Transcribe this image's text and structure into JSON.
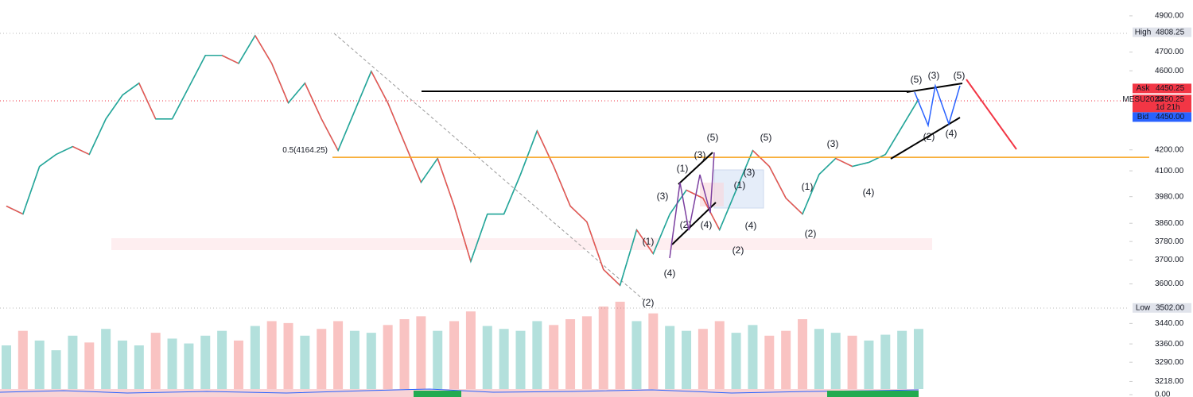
{
  "chart_data": {
    "type": "line",
    "log_scale": true,
    "grid": false,
    "color": "#26a69a",
    "up_color": "#26a69a",
    "down_color": "#ef5350",
    "categories": [
      null,
      null,
      null,
      null,
      null,
      null,
      null,
      null,
      null,
      null,
      null,
      null,
      null,
      null,
      null,
      null,
      null,
      null,
      null,
      null,
      null,
      null,
      null,
      null,
      null,
      null,
      null,
      null,
      null,
      null,
      null,
      null,
      null,
      null,
      null,
      null,
      null,
      null,
      null,
      null,
      null,
      null,
      null,
      null,
      null,
      null,
      null,
      null,
      null,
      null,
      null,
      null,
      null,
      null,
      null,
      null
    ],
    "values": [
      3937,
      3901,
      4121,
      4178,
      4216,
      4178,
      4352,
      4473,
      4535,
      4352,
      4352,
      4514,
      4682,
      4682,
      4639,
      4790,
      4639,
      4433,
      4535,
      4352,
      4197,
      4392,
      4597,
      4433,
      4235,
      4046,
      4159,
      3937,
      3694,
      3901,
      3901,
      4083,
      4293,
      4121,
      3937,
      3866,
      3660,
      3594,
      3831,
      3727,
      3901,
      4010,
      3973,
      3831,
      4010,
      4197,
      4121,
      3973,
      3901,
      4083,
      4159,
      4121,
      4140,
      4178,
      4313,
      4452
    ],
    "volume": [
      45,
      60,
      50,
      40,
      55,
      48,
      62,
      50,
      45,
      58,
      52,
      47,
      55,
      60,
      50,
      65,
      70,
      68,
      55,
      62,
      70,
      60,
      58,
      66,
      72,
      75,
      60,
      70,
      80,
      65,
      62,
      60,
      70,
      66,
      72,
      75,
      85,
      90,
      70,
      78,
      65,
      60,
      62,
      70,
      58,
      66,
      55,
      60,
      72,
      62,
      58,
      55,
      50,
      56,
      60,
      62
    ],
    "ylim": [
      3190,
      4990
    ],
    "yticks": [
      {
        "value": 4900,
        "label": "4900.00"
      },
      {
        "value": 4700,
        "label": "4700.00"
      },
      {
        "value": 4600,
        "label": "4600.00"
      },
      {
        "value": 4200,
        "label": "4200.00"
      },
      {
        "value": 4100,
        "label": "4100.00"
      },
      {
        "value": 3980,
        "label": "3980.00"
      },
      {
        "value": 3860,
        "label": "3860.00"
      },
      {
        "value": 3780,
        "label": "3780.00"
      },
      {
        "value": 3700,
        "label": "3700.00"
      },
      {
        "value": 3600,
        "label": "3600.00"
      },
      {
        "value": 3440,
        "label": "3440.00"
      },
      {
        "value": 3360,
        "label": "3360.00"
      },
      {
        "value": 3290,
        "label": "3290.00"
      },
      {
        "value": 3218,
        "label": "3218.00"
      }
    ],
    "indicator_ticks": [
      {
        "value": 0,
        "label": "0.00"
      }
    ],
    "price_labels": [
      {
        "name": "High",
        "value": 4808.25,
        "label": "4808.25",
        "color": "#e0e3eb"
      },
      {
        "name": "Low",
        "value": 3502,
        "label": "3502.00",
        "color": "#e0e3eb"
      },
      {
        "name": "Ask",
        "value": 4450.25,
        "label": "4450.25",
        "color": "#f23645"
      },
      {
        "name": "MESU2023",
        "value": 4450.25,
        "label": "4450.25",
        "countdown": "1d 21h",
        "color": "#f23645"
      },
      {
        "name": "Bid",
        "value": 4450,
        "label": "4450.00",
        "color": "#2962ff"
      }
    ],
    "fib_level": {
      "label": "0.5(4164.25)",
      "value": 4164.25,
      "color": "#f7a21b"
    },
    "annotations": [
      {
        "text": "(1)",
        "color": "#7b3fa0"
      },
      {
        "text": "(2)",
        "color": "#7b3fa0"
      },
      {
        "text": "(3)",
        "color": "#7b3fa0"
      },
      {
        "text": "(4)",
        "color": "#7b3fa0"
      },
      {
        "text": "(1)",
        "color": "#7b3fa0"
      },
      {
        "text": "(2)",
        "color": "#2962ff"
      },
      {
        "text": "(3)",
        "color": "#7b3fa0"
      },
      {
        "text": "(4)",
        "color": "#2962ff"
      },
      {
        "text": "(5)",
        "color": "#2962ff"
      },
      {
        "text": "(1)",
        "color": "#1a9a6c"
      },
      {
        "text": "(2)",
        "color": "#1a9a6c"
      },
      {
        "text": "(3)",
        "color": "#1a9a6c"
      },
      {
        "text": "(4)",
        "color": "#1a9a6c"
      },
      {
        "text": "(5)",
        "color": "#1a9a6c"
      },
      {
        "text": "(1)",
        "color": "#1a9a6c"
      },
      {
        "text": "(2)",
        "color": "#1a9a6c"
      },
      {
        "text": "(3)",
        "color": "#1a9a6c"
      },
      {
        "text": "(4)",
        "color": "#1a9a6c"
      },
      {
        "text": "(5)",
        "color": "#2962ff"
      },
      {
        "text": "(3)",
        "color": "#2962ff"
      },
      {
        "text": "(5)",
        "color": "#2962ff"
      },
      {
        "text": "(2)",
        "color": "#2962ff"
      },
      {
        "text": "(4)",
        "color": "#2962ff"
      }
    ]
  }
}
